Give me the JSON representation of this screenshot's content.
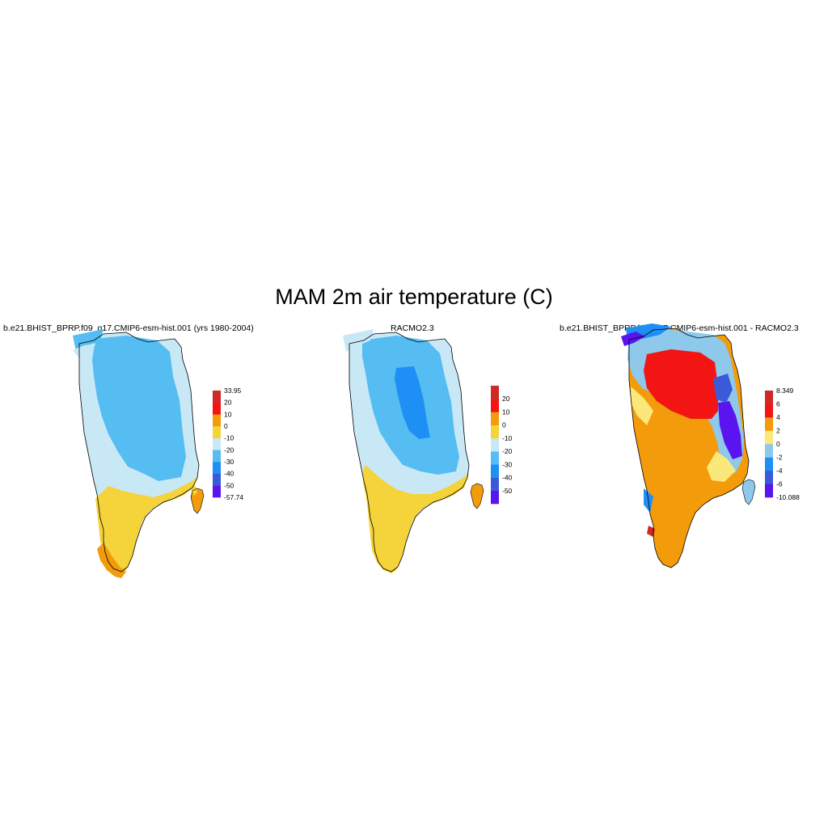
{
  "figure": {
    "title": "MAM 2m air temperature (C)"
  },
  "panels": [
    {
      "id": "model",
      "title": "b.e21.BHIST_BPRP.f09_g17.CMIP6-esm-hist.001 (yrs 1980-2004)",
      "colorbar": {
        "colors": [
          "#5a14ef",
          "#3a5ad8",
          "#1d8ff5",
          "#55bdf2",
          "#c9e8f6",
          "#f5d33a",
          "#f39b0a",
          "#f21513",
          "#cf2a27"
        ],
        "labels": [
          "-57.74",
          "-50",
          "-40",
          "-30",
          "-20",
          "-10",
          "0",
          "10",
          "20",
          "33.95"
        ]
      }
    },
    {
      "id": "obs",
      "title": "RACMO2.3",
      "colorbar": {
        "colors": [
          "#5a14ef",
          "#3a5ad8",
          "#1d8ff5",
          "#55bdf2",
          "#c9e8f6",
          "#f5d33a",
          "#f39b0a",
          "#f21513",
          "#cf2a27"
        ],
        "labels": [
          "",
          "-50",
          "-40",
          "-30",
          "-20",
          "-10",
          "0",
          "10",
          "20",
          ""
        ]
      }
    },
    {
      "id": "diff",
      "title": "b.e21.BHIST_BPRP.f09_g17.CMIP6-esm-hist.001 - RACMO2.3",
      "colorbar": {
        "colors": [
          "#5a14ef",
          "#3a5ad8",
          "#1d8ff5",
          "#8ec8ea",
          "#fbe87a",
          "#f39b0a",
          "#f21513",
          "#cf2a27"
        ],
        "labels": [
          "-10.088",
          "-6",
          "-4",
          "-2",
          "0",
          "2",
          "4",
          "6",
          "8.349"
        ]
      }
    }
  ]
}
